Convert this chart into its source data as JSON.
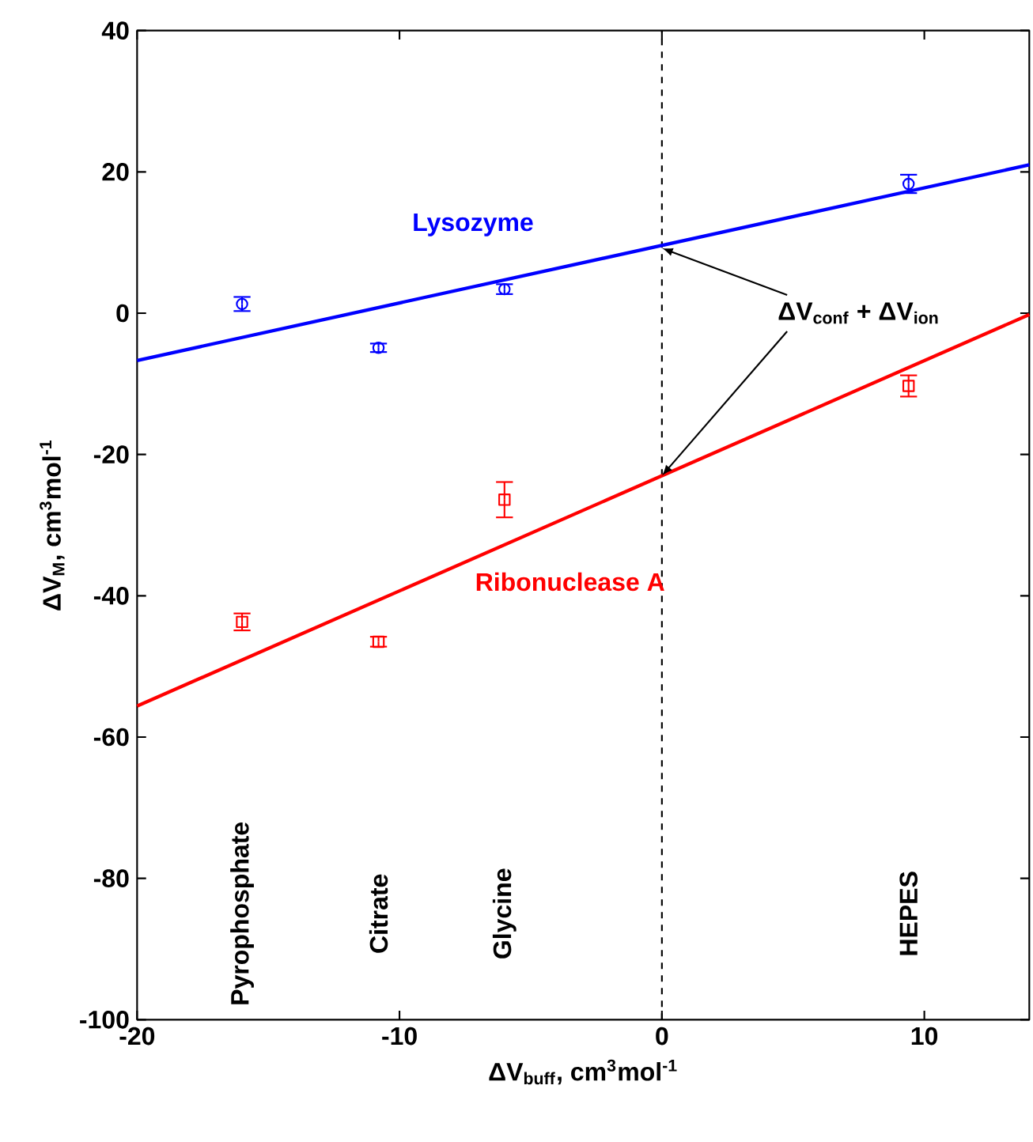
{
  "chart_data": {
    "type": "scatter",
    "xlabel": "ΔV$_{buff}$, cm$^{3}$mol$^{-1}$",
    "ylabel": "ΔV$_{M}$, cm$^{3}$mol$^{-1}$",
    "xlim": [
      -20,
      14
    ],
    "ylim": [
      -100,
      40
    ],
    "xticks": [
      -20,
      -10,
      0,
      10
    ],
    "yticks": [
      -100,
      -80,
      -60,
      -40,
      -20,
      0,
      20,
      40
    ],
    "series": [
      {
        "name": "Lysozyme",
        "color": "#0000ff",
        "marker": "circle",
        "x": [
          -16,
          -10.8,
          -6,
          9.4
        ],
        "values": [
          1.3,
          -4.9,
          3.4,
          18.3
        ],
        "errors": [
          1,
          0.6,
          0.7,
          1.3
        ]
      },
      {
        "name": "Ribonuclease A",
        "color": "#ff0000",
        "marker": "square",
        "x": [
          -16,
          -10.8,
          -6,
          9.4
        ],
        "values": [
          -43.7,
          -46.5,
          -26.4,
          -10.3
        ],
        "errors": [
          1.2,
          0.7,
          2.5,
          1.5
        ]
      },
      {
        "type": "line",
        "color": "#0000ff",
        "x": [
          -20,
          14
        ],
        "values": [
          -6.7,
          21
        ]
      },
      {
        "type": "line",
        "color": "#ff0000",
        "x": [
          -20,
          14
        ],
        "values": [
          -55.6,
          -0.2
        ]
      }
    ],
    "ref_lines": [
      {
        "axis": "x",
        "value": 0,
        "color": "#000000",
        "line_style": "dashed"
      }
    ],
    "annotations": [
      "Pyrophosphate",
      "Citrate",
      "Glycine",
      "HEPES",
      {
        "text": "ΔV$_{conf}$ + ΔV$_{ion}$",
        "x": 0,
        "y": 9.2
      }
    ],
    "grid": false
  }
}
